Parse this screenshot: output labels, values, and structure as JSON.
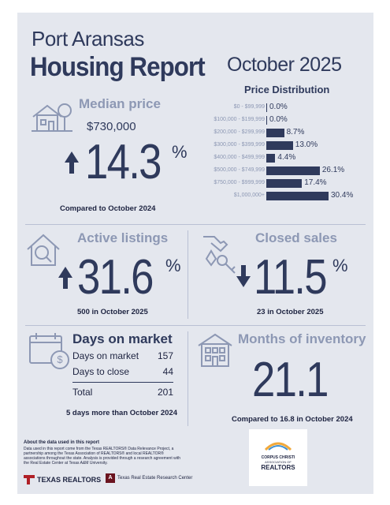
{
  "header": {
    "city": "Port Aransas",
    "title": "Housing Report",
    "month": "October 2025"
  },
  "median": {
    "title": "Median price",
    "price": "$730,000",
    "change": "14.3",
    "pct_sign": "%",
    "direction": "up",
    "caption": "Compared to October 2024",
    "icon": "house-tree-icon"
  },
  "price_distribution": {
    "title": "Price Distribution"
  },
  "chart_data": {
    "type": "bar",
    "title": "Price Distribution",
    "orientation": "horizontal",
    "categories": [
      "$0 - $99,999",
      "$100,000 - $199,999",
      "$200,000 - $299,999",
      "$300,000 - $399,999",
      "$400,000 - $499,999",
      "$500,000 - $749,999",
      "$750,000 - $999,999",
      "$1,000,000+"
    ],
    "values": [
      0.0,
      0.0,
      8.7,
      13.0,
      4.4,
      26.1,
      17.4,
      30.4
    ],
    "value_labels": [
      "0.0%",
      "0.0%",
      "8.7%",
      "13.0%",
      "4.4%",
      "26.1%",
      "17.4%",
      "30.4%"
    ],
    "xlim": [
      0,
      30.4
    ],
    "grid": false,
    "color": "#2f3a5c"
  },
  "active": {
    "title": "Active listings",
    "change": "31.6",
    "pct_sign": "%",
    "direction": "up",
    "caption": "500 in October 2025",
    "icon": "house-magnifier-icon"
  },
  "closed": {
    "title": "Closed sales",
    "change": "11.5",
    "pct_sign": "%",
    "direction": "down",
    "caption": "23 in October 2025",
    "icon": "hand-key-icon"
  },
  "dom": {
    "title": "Days on market",
    "rows": [
      {
        "label": "Days on market",
        "value": "157"
      },
      {
        "label": "Days to close",
        "value": "44"
      }
    ],
    "total_label": "Total",
    "total_value": "201",
    "caption": "5 days more than October 2024",
    "icon": "calendar-dollar-icon"
  },
  "inventory": {
    "title": "Months of inventory",
    "value": "21.1",
    "caption": "Compared to 16.8 in October 2024",
    "icon": "building-icon"
  },
  "footer": {
    "about_title": "About the data used in this report",
    "about_text": "Data used in this report come from the Texas REALTORS® Data Relevance Project, a partnership among the Texas Association of REALTORS® and local REALTOR® associations throughout the state. Analysis is provided through a research agreement with the Real Estate Center at Texas A&M University.",
    "logo_texas_realtors": "TEXAS REALTORS",
    "logo_research_center": "Texas Real Estate Research Center",
    "logo_cc_line1": "CORPUS CHRISTI",
    "logo_cc_line2": "ASSOCIATION OF",
    "logo_cc_line3": "REALTORS"
  }
}
